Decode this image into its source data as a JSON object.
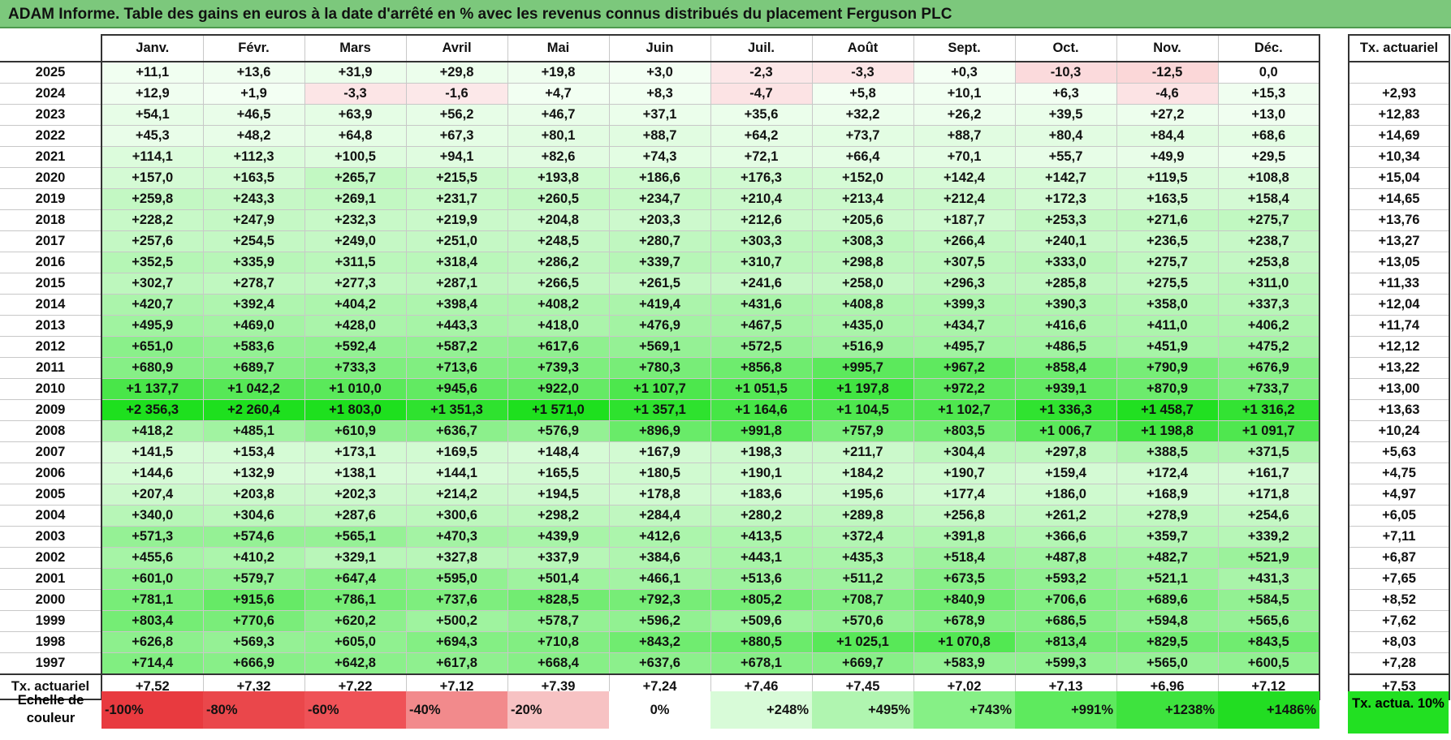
{
  "title": "ADAM Informe. Table des gains en euros à la date d'arrêté en % avec les revenus connus distribués du placement Ferguson PLC",
  "colors": {
    "title_bg": "#7cc87c",
    "neg_base": "#e8303a",
    "pos_base": "#1ee01e",
    "actuariel_swatch": "#22e022"
  },
  "months": [
    "Janv.",
    "Févr.",
    "Mars",
    "Avril",
    "Mai",
    "Juin",
    "Juil.",
    "Août",
    "Sept.",
    "Oct.",
    "Nov.",
    "Déc."
  ],
  "actuarial_header": "Tx. actuariel",
  "rows": [
    {
      "year": "2025",
      "values": [
        "+11,1",
        "+13,6",
        "+31,9",
        "+29,8",
        "+19,8",
        "+3,0",
        "-2,3",
        "-3,3",
        "+0,3",
        "-10,3",
        "-12,5",
        "0,0"
      ],
      "rate": ""
    },
    {
      "year": "2024",
      "values": [
        "+12,9",
        "+1,9",
        "-3,3",
        "-1,6",
        "+4,7",
        "+8,3",
        "-4,7",
        "+5,8",
        "+10,1",
        "+6,3",
        "-4,6",
        "+15,3"
      ],
      "rate": "+2,93"
    },
    {
      "year": "2023",
      "values": [
        "+54,1",
        "+46,5",
        "+63,9",
        "+56,2",
        "+46,7",
        "+37,1",
        "+35,6",
        "+32,2",
        "+26,2",
        "+39,5",
        "+27,2",
        "+13,0"
      ],
      "rate": "+12,83"
    },
    {
      "year": "2022",
      "values": [
        "+45,3",
        "+48,2",
        "+64,8",
        "+67,3",
        "+80,1",
        "+88,7",
        "+64,2",
        "+73,7",
        "+88,7",
        "+80,4",
        "+84,4",
        "+68,6"
      ],
      "rate": "+14,69"
    },
    {
      "year": "2021",
      "values": [
        "+114,1",
        "+112,3",
        "+100,5",
        "+94,1",
        "+82,6",
        "+74,3",
        "+72,1",
        "+66,4",
        "+70,1",
        "+55,7",
        "+49,9",
        "+29,5"
      ],
      "rate": "+10,34"
    },
    {
      "year": "2020",
      "values": [
        "+157,0",
        "+163,5",
        "+265,7",
        "+215,5",
        "+193,8",
        "+186,6",
        "+176,3",
        "+152,0",
        "+142,4",
        "+142,7",
        "+119,5",
        "+108,8"
      ],
      "rate": "+15,04"
    },
    {
      "year": "2019",
      "values": [
        "+259,8",
        "+243,3",
        "+269,1",
        "+231,7",
        "+260,5",
        "+234,7",
        "+210,4",
        "+213,4",
        "+212,4",
        "+172,3",
        "+163,5",
        "+158,4"
      ],
      "rate": "+14,65"
    },
    {
      "year": "2018",
      "values": [
        "+228,2",
        "+247,9",
        "+232,3",
        "+219,9",
        "+204,8",
        "+203,3",
        "+212,6",
        "+205,6",
        "+187,7",
        "+253,3",
        "+271,6",
        "+275,7"
      ],
      "rate": "+13,76"
    },
    {
      "year": "2017",
      "values": [
        "+257,6",
        "+254,5",
        "+249,0",
        "+251,0",
        "+248,5",
        "+280,7",
        "+303,3",
        "+308,3",
        "+266,4",
        "+240,1",
        "+236,5",
        "+238,7"
      ],
      "rate": "+13,27"
    },
    {
      "year": "2016",
      "values": [
        "+352,5",
        "+335,9",
        "+311,5",
        "+318,4",
        "+286,2",
        "+339,7",
        "+310,7",
        "+298,8",
        "+307,5",
        "+333,0",
        "+275,7",
        "+253,8"
      ],
      "rate": "+13,05"
    },
    {
      "year": "2015",
      "values": [
        "+302,7",
        "+278,7",
        "+277,3",
        "+287,1",
        "+266,5",
        "+261,5",
        "+241,6",
        "+258,0",
        "+296,3",
        "+285,8",
        "+275,5",
        "+311,0"
      ],
      "rate": "+11,33"
    },
    {
      "year": "2014",
      "values": [
        "+420,7",
        "+392,4",
        "+404,2",
        "+398,4",
        "+408,2",
        "+419,4",
        "+431,6",
        "+408,8",
        "+399,3",
        "+390,3",
        "+358,0",
        "+337,3"
      ],
      "rate": "+12,04"
    },
    {
      "year": "2013",
      "values": [
        "+495,9",
        "+469,0",
        "+428,0",
        "+443,3",
        "+418,0",
        "+476,9",
        "+467,5",
        "+435,0",
        "+434,7",
        "+416,6",
        "+411,0",
        "+406,2"
      ],
      "rate": "+11,74"
    },
    {
      "year": "2012",
      "values": [
        "+651,0",
        "+583,6",
        "+592,4",
        "+587,2",
        "+617,6",
        "+569,1",
        "+572,5",
        "+516,9",
        "+495,7",
        "+486,5",
        "+451,9",
        "+475,2"
      ],
      "rate": "+12,12"
    },
    {
      "year": "2011",
      "values": [
        "+680,9",
        "+689,7",
        "+733,3",
        "+713,6",
        "+739,3",
        "+780,3",
        "+856,8",
        "+995,7",
        "+967,2",
        "+858,4",
        "+790,9",
        "+676,9"
      ],
      "rate": "+13,22"
    },
    {
      "year": "2010",
      "values": [
        "+1 137,7",
        "+1 042,2",
        "+1 010,0",
        "+945,6",
        "+922,0",
        "+1 107,7",
        "+1 051,5",
        "+1 197,8",
        "+972,2",
        "+939,1",
        "+870,9",
        "+733,7"
      ],
      "rate": "+13,00"
    },
    {
      "year": "2009",
      "values": [
        "+2 356,3",
        "+2 260,4",
        "+1 803,0",
        "+1 351,3",
        "+1 571,0",
        "+1 357,1",
        "+1 164,6",
        "+1 104,5",
        "+1 102,7",
        "+1 336,3",
        "+1 458,7",
        "+1 316,2"
      ],
      "rate": "+13,63"
    },
    {
      "year": "2008",
      "values": [
        "+418,2",
        "+485,1",
        "+610,9",
        "+636,7",
        "+576,9",
        "+896,9",
        "+991,8",
        "+757,9",
        "+803,5",
        "+1 006,7",
        "+1 198,8",
        "+1 091,7"
      ],
      "rate": "+10,24"
    },
    {
      "year": "2007",
      "values": [
        "+141,5",
        "+153,4",
        "+173,1",
        "+169,5",
        "+148,4",
        "+167,9",
        "+198,3",
        "+211,7",
        "+304,4",
        "+297,8",
        "+388,5",
        "+371,5"
      ],
      "rate": "+5,63"
    },
    {
      "year": "2006",
      "values": [
        "+144,6",
        "+132,9",
        "+138,1",
        "+144,1",
        "+165,5",
        "+180,5",
        "+190,1",
        "+184,2",
        "+190,7",
        "+159,4",
        "+172,4",
        "+161,7"
      ],
      "rate": "+4,75"
    },
    {
      "year": "2005",
      "values": [
        "+207,4",
        "+203,8",
        "+202,3",
        "+214,2",
        "+194,5",
        "+178,8",
        "+183,6",
        "+195,6",
        "+177,4",
        "+186,0",
        "+168,9",
        "+171,8"
      ],
      "rate": "+4,97"
    },
    {
      "year": "2004",
      "values": [
        "+340,0",
        "+304,6",
        "+287,6",
        "+300,6",
        "+298,2",
        "+284,4",
        "+280,2",
        "+289,8",
        "+256,8",
        "+261,2",
        "+278,9",
        "+254,6"
      ],
      "rate": "+6,05"
    },
    {
      "year": "2003",
      "values": [
        "+571,3",
        "+574,6",
        "+565,1",
        "+470,3",
        "+439,9",
        "+412,6",
        "+413,5",
        "+372,4",
        "+391,8",
        "+366,6",
        "+359,7",
        "+339,2"
      ],
      "rate": "+7,11"
    },
    {
      "year": "2002",
      "values": [
        "+455,6",
        "+410,2",
        "+329,1",
        "+327,8",
        "+337,9",
        "+384,6",
        "+443,1",
        "+435,3",
        "+518,4",
        "+487,8",
        "+482,7",
        "+521,9"
      ],
      "rate": "+6,87"
    },
    {
      "year": "2001",
      "values": [
        "+601,0",
        "+579,7",
        "+647,4",
        "+595,0",
        "+501,4",
        "+466,1",
        "+513,6",
        "+511,2",
        "+673,5",
        "+593,2",
        "+521,1",
        "+431,3"
      ],
      "rate": "+7,65"
    },
    {
      "year": "2000",
      "values": [
        "+781,1",
        "+915,6",
        "+786,1",
        "+737,6",
        "+828,5",
        "+792,3",
        "+805,2",
        "+708,7",
        "+840,9",
        "+706,6",
        "+689,6",
        "+584,5"
      ],
      "rate": "+8,52"
    },
    {
      "year": "1999",
      "values": [
        "+803,4",
        "+770,6",
        "+620,2",
        "+500,2",
        "+578,7",
        "+596,2",
        "+509,6",
        "+570,6",
        "+678,9",
        "+686,5",
        "+594,8",
        "+565,6"
      ],
      "rate": "+7,62"
    },
    {
      "year": "1998",
      "values": [
        "+626,8",
        "+569,3",
        "+605,0",
        "+694,3",
        "+710,8",
        "+843,2",
        "+880,5",
        "+1 025,1",
        "+1 070,8",
        "+813,4",
        "+829,5",
        "+843,5"
      ],
      "rate": "+8,03"
    },
    {
      "year": "1997",
      "values": [
        "+714,4",
        "+666,9",
        "+642,8",
        "+617,8",
        "+668,4",
        "+637,6",
        "+678,1",
        "+669,7",
        "+583,9",
        "+599,3",
        "+565,0",
        "+600,5"
      ],
      "rate": "+7,28"
    }
  ],
  "footer": {
    "label": "Tx. actuariel",
    "values": [
      "+7,52",
      "+7,32",
      "+7,22",
      "+7,12",
      "+7,39",
      "+7,24",
      "+7,46",
      "+7,45",
      "+7,02",
      "+7,13",
      "+6,96",
      "+7,12"
    ],
    "total": "+7,53"
  },
  "scale": {
    "label": "Echelle de couleur",
    "items": [
      {
        "text": "-100%",
        "color": "#e83a3f",
        "kind": "neg"
      },
      {
        "text": "-80%",
        "color": "#ea474b",
        "kind": "neg"
      },
      {
        "text": "-60%",
        "color": "#ef5257",
        "kind": "neg"
      },
      {
        "text": "-40%",
        "color": "#f28a8c",
        "kind": "neg"
      },
      {
        "text": "-20%",
        "color": "#f7c2c3",
        "kind": "neg"
      },
      {
        "text": "0%",
        "color": "#ffffff",
        "kind": "zero"
      },
      {
        "text": "+248%",
        "color": "#d8fbd8",
        "kind": "pos"
      },
      {
        "text": "+495%",
        "color": "#b0f5b0",
        "kind": "pos"
      },
      {
        "text": "+743%",
        "color": "#86f086",
        "kind": "pos"
      },
      {
        "text": "+991%",
        "color": "#5eea5e",
        "kind": "pos"
      },
      {
        "text": "+1238%",
        "color": "#3ee33e",
        "kind": "pos"
      },
      {
        "text": "+1486%",
        "color": "#22dd22",
        "kind": "pos"
      }
    ],
    "actuarial_label": "Tx. actua. 10%"
  }
}
